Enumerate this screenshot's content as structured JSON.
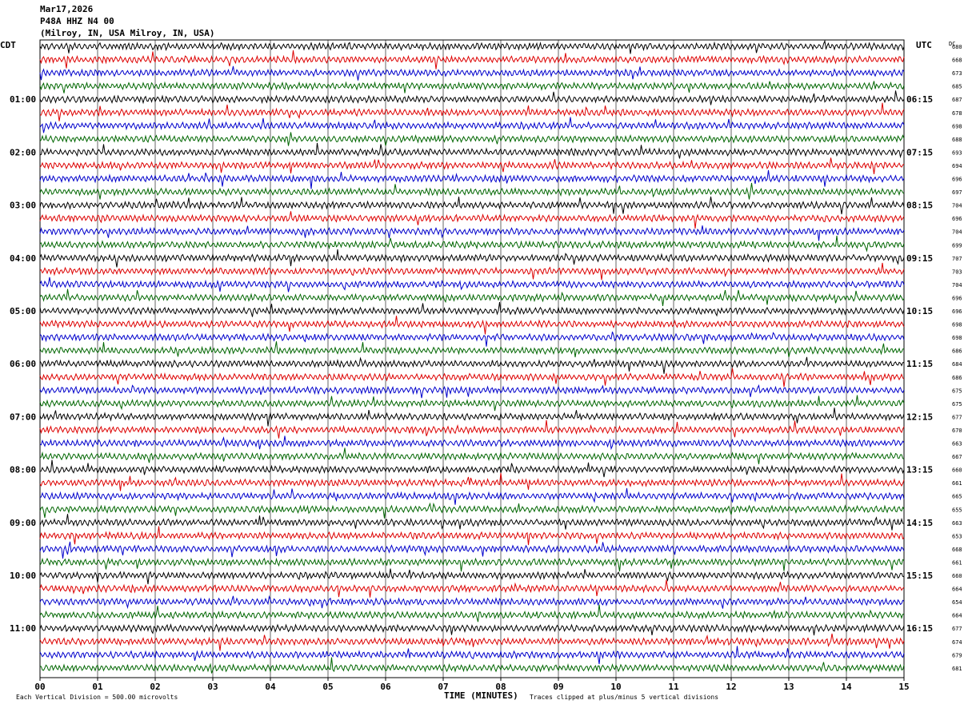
{
  "header": {
    "date": "Mar17,2026",
    "station": "P48A HHZ N4 00",
    "location": "(Milroy, IN, USA Milroy, IN, USA)"
  },
  "left_axis_label": "CDT",
  "right_axis_label": "UTC",
  "dc_label": "DC",
  "footer": {
    "scale_note": "Each Vertical Division =  500.00 microvolts",
    "xlabel": "TIME (MINUTES)",
    "clip_note": "Traces clipped at plus/minus 5 vertical divisions"
  },
  "colors": {
    "trace_cycle": [
      "#000000",
      "#dd0000",
      "#0000cc",
      "#006600"
    ],
    "grid": "#000000"
  },
  "chart_data": {
    "type": "line",
    "title": "P48A HHZ N4 00",
    "xlabel": "TIME (MINUTES)",
    "xlim": [
      0,
      15
    ],
    "x_ticks": [
      "00",
      "01",
      "02",
      "03",
      "04",
      "05",
      "06",
      "07",
      "08",
      "09",
      "10",
      "11",
      "12",
      "13",
      "14",
      "15"
    ],
    "trace_count": 48,
    "minutes_per_trace": 15,
    "left_hour_labels": [
      {
        "trace": 4,
        "label": "01:00"
      },
      {
        "trace": 8,
        "label": "02:00"
      },
      {
        "trace": 12,
        "label": "03:00"
      },
      {
        "trace": 16,
        "label": "04:00"
      },
      {
        "trace": 20,
        "label": "05:00"
      },
      {
        "trace": 24,
        "label": "06:00"
      },
      {
        "trace": 28,
        "label": "07:00"
      },
      {
        "trace": 32,
        "label": "08:00"
      },
      {
        "trace": 36,
        "label": "09:00"
      },
      {
        "trace": 40,
        "label": "10:00"
      },
      {
        "trace": 44,
        "label": "11:00"
      }
    ],
    "right_hour_labels": [
      {
        "trace": 4,
        "label": "06:15"
      },
      {
        "trace": 8,
        "label": "07:15"
      },
      {
        "trace": 12,
        "label": "08:15"
      },
      {
        "trace": 16,
        "label": "09:15"
      },
      {
        "trace": 20,
        "label": "10:15"
      },
      {
        "trace": 24,
        "label": "11:15"
      },
      {
        "trace": 28,
        "label": "12:15"
      },
      {
        "trace": 32,
        "label": "13:15"
      },
      {
        "trace": 36,
        "label": "14:15"
      },
      {
        "trace": 40,
        "label": "15:15"
      },
      {
        "trace": 44,
        "label": "16:15"
      }
    ],
    "dc_offsets": [
      680,
      668,
      673,
      685,
      687,
      678,
      698,
      688,
      693,
      694,
      696,
      697,
      704,
      696,
      704,
      699,
      707,
      703,
      704,
      696,
      696,
      698,
      698,
      686,
      684,
      686,
      675,
      675,
      677,
      670,
      663,
      667,
      660,
      661,
      665,
      655,
      663,
      653,
      668,
      661,
      660,
      664,
      654,
      664,
      677,
      674,
      679,
      681
    ],
    "units": "microvolts",
    "vertical_division": 500.0,
    "clip_divisions": 5
  }
}
